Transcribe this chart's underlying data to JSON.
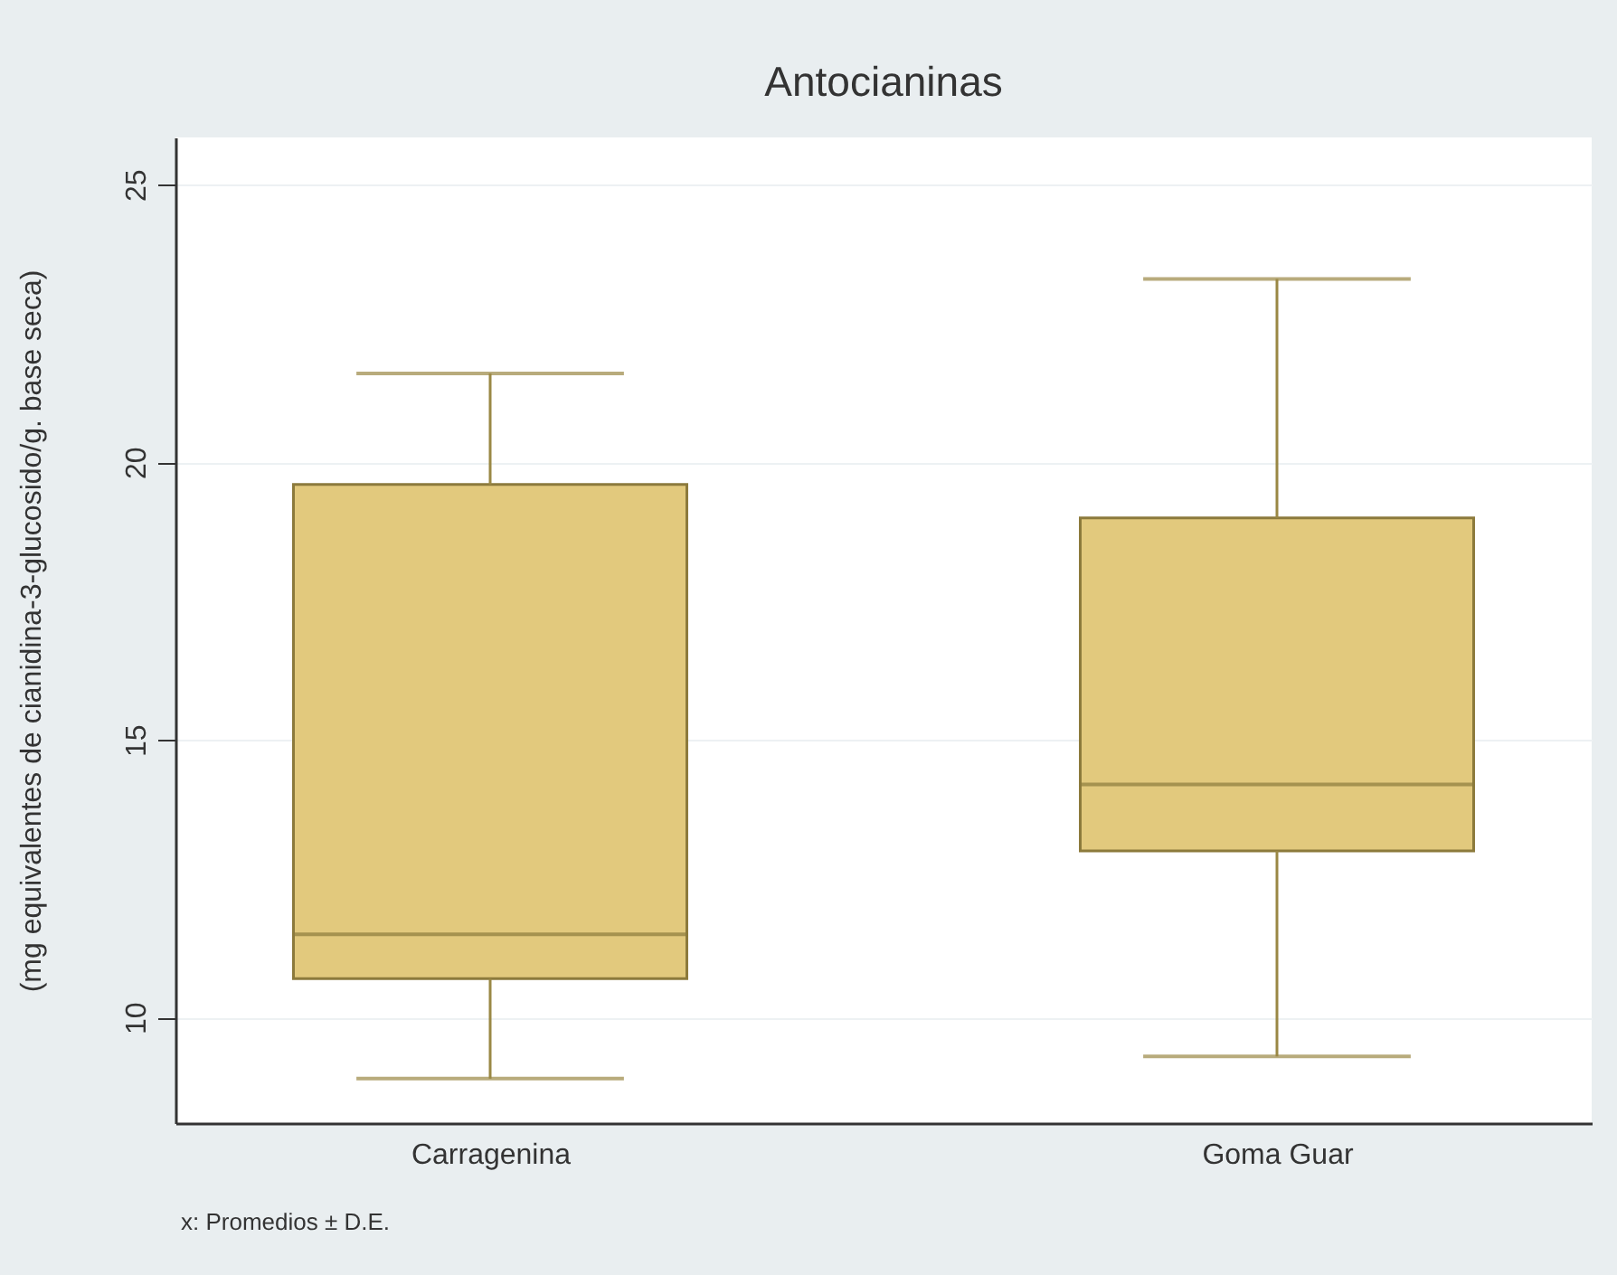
{
  "chart_data": {
    "type": "box",
    "title": "Antocianinas",
    "ylabel": "(mg equivalentes de cianidina-3-glucosido/g. base seca)",
    "categories": [
      "Carragenina",
      "Goma Guar"
    ],
    "boxes": [
      {
        "low": 8.9,
        "q1": 10.7,
        "median": 11.5,
        "q3": 19.6,
        "high": 21.6
      },
      {
        "low": 9.3,
        "q1": 13.0,
        "median": 14.2,
        "q3": 19.0,
        "high": 23.3
      }
    ],
    "color": "#e2c97d",
    "ylim": [
      8.1,
      25.85
    ],
    "yticks": [
      10,
      15,
      20,
      25
    ],
    "grid": "y",
    "annotations": [
      "x: Promedios ± D.E."
    ]
  }
}
